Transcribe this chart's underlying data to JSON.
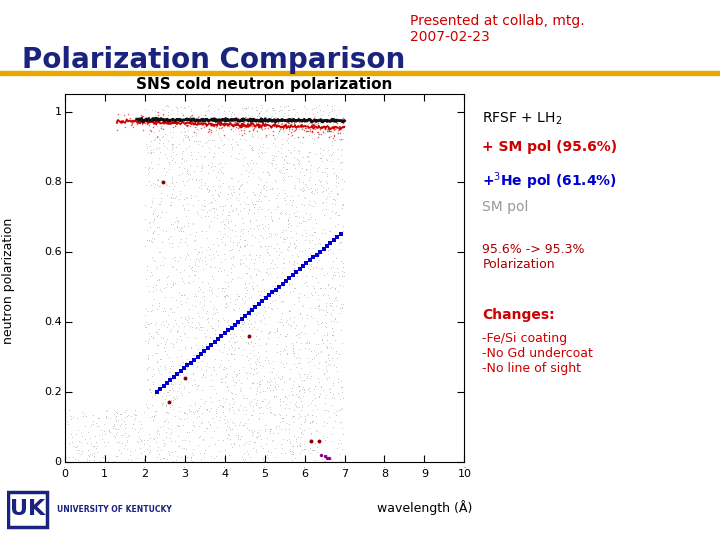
{
  "title": "Polarization Comparison",
  "subtitle": "Presented at collab, mtg.\n2007-02-23",
  "plot_title": "SNS cold neutron polarization",
  "xlabel": "wavelength (Å)",
  "ylabel": "neutron polarization",
  "xlim": [
    0,
    10
  ],
  "ylim": [
    0,
    1.05
  ],
  "slide_bg": "#ffffff",
  "plot_bg": "#ffffff",
  "header_line_color": "#e8a800",
  "title_color": "#1a237e",
  "subtitle_color": "#cc0000",
  "annotation_black": "#000000",
  "annotation_red": "#cc0000",
  "annotation_blue": "#0000cc",
  "annotation_gray": "#999999",
  "annotation_darkred": "#aa0000",
  "uk_blue": "#1a237e",
  "gray_dot_color": "#bbbbbb",
  "red_line_color": "#cc0000",
  "blue_dot_color": "#0000cc",
  "black_line_color": "#111111"
}
